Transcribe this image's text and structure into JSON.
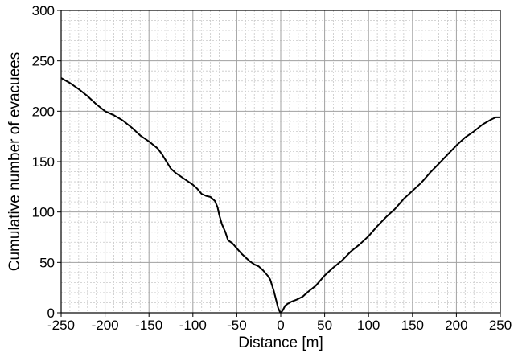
{
  "chart_data": {
    "type": "line",
    "title": "",
    "xlabel": "Distance [m]",
    "ylabel": "Cumulative number of evacuees",
    "xlim": [
      -250,
      250
    ],
    "ylim": [
      0,
      300
    ],
    "x_ticks": [
      -250,
      -200,
      -150,
      -100,
      -50,
      0,
      50,
      100,
      150,
      200,
      250
    ],
    "y_ticks": [
      0,
      50,
      100,
      150,
      200,
      250,
      300
    ],
    "x_tick_labels": [
      "-250",
      "-200",
      "-150",
      "-100",
      "-50",
      "0",
      "50",
      "100",
      "150",
      "200",
      "250"
    ],
    "y_tick_labels": [
      "0",
      "50",
      "100",
      "150",
      "200",
      "250",
      "300"
    ],
    "grid": true,
    "minor_grid": true,
    "colors": {
      "line": "#000000",
      "major_grid": "#a0a0a0",
      "minor_grid": "#c8c8c8"
    },
    "series": [
      {
        "points": [
          [
            -250,
            233
          ],
          [
            -240,
            228
          ],
          [
            -230,
            222
          ],
          [
            -220,
            215
          ],
          [
            -210,
            207
          ],
          [
            -200,
            200
          ],
          [
            -190,
            196
          ],
          [
            -180,
            191
          ],
          [
            -170,
            184
          ],
          [
            -160,
            176
          ],
          [
            -150,
            170
          ],
          [
            -140,
            163
          ],
          [
            -135,
            157
          ],
          [
            -130,
            150
          ],
          [
            -125,
            143
          ],
          [
            -120,
            139
          ],
          [
            -110,
            133
          ],
          [
            -100,
            127
          ],
          [
            -95,
            123
          ],
          [
            -90,
            118
          ],
          [
            -85,
            116
          ],
          [
            -80,
            115
          ],
          [
            -75,
            111
          ],
          [
            -72,
            105
          ],
          [
            -70,
            97
          ],
          [
            -67,
            88
          ],
          [
            -63,
            80
          ],
          [
            -60,
            72
          ],
          [
            -55,
            69
          ],
          [
            -50,
            64
          ],
          [
            -45,
            59
          ],
          [
            -40,
            55
          ],
          [
            -35,
            51
          ],
          [
            -30,
            48
          ],
          [
            -25,
            46
          ],
          [
            -20,
            42
          ],
          [
            -15,
            37
          ],
          [
            -12,
            33
          ],
          [
            -8,
            22
          ],
          [
            -5,
            12
          ],
          [
            -3,
            5
          ],
          [
            -1,
            1
          ],
          [
            0,
            0
          ],
          [
            2,
            2
          ],
          [
            5,
            7
          ],
          [
            8,
            9
          ],
          [
            12,
            11
          ],
          [
            18,
            13
          ],
          [
            25,
            16
          ],
          [
            30,
            20
          ],
          [
            40,
            27
          ],
          [
            50,
            37
          ],
          [
            60,
            45
          ],
          [
            70,
            52
          ],
          [
            80,
            61
          ],
          [
            90,
            68
          ],
          [
            100,
            76
          ],
          [
            110,
            86
          ],
          [
            120,
            95
          ],
          [
            130,
            103
          ],
          [
            140,
            113
          ],
          [
            150,
            121
          ],
          [
            160,
            129
          ],
          [
            170,
            139
          ],
          [
            180,
            148
          ],
          [
            190,
            157
          ],
          [
            200,
            166
          ],
          [
            210,
            174
          ],
          [
            220,
            180
          ],
          [
            230,
            187
          ],
          [
            240,
            192
          ],
          [
            245,
            194
          ],
          [
            250,
            194
          ]
        ]
      }
    ]
  }
}
